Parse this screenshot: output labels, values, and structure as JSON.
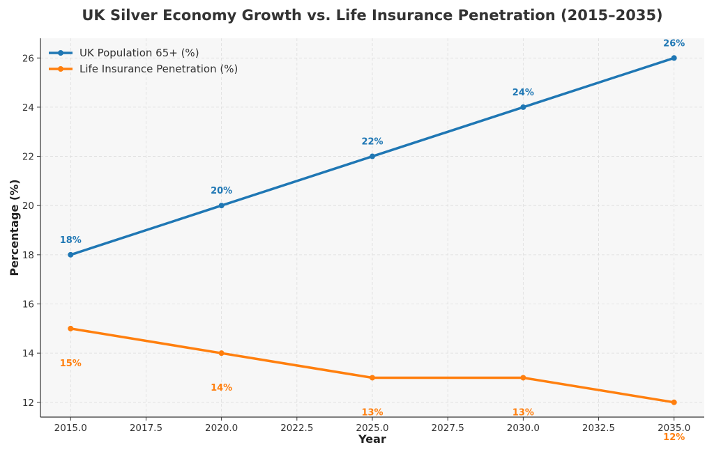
{
  "chart_data": {
    "type": "line",
    "title": "UK Silver Economy Growth vs. Life Insurance Penetration (2015–2035)",
    "xlabel": "Year",
    "ylabel": "Percentage (%)",
    "xlim": [
      2014.0,
      2036.0
    ],
    "ylim": [
      11.4,
      26.8
    ],
    "xticks": [
      2015.0,
      2017.5,
      2020.0,
      2022.5,
      2025.0,
      2027.5,
      2030.0,
      2032.5,
      2035.0
    ],
    "xtick_labels": [
      "2015.0",
      "2017.5",
      "2020.0",
      "2022.5",
      "2025.0",
      "2027.5",
      "2030.0",
      "2032.5",
      "2035.0"
    ],
    "yticks": [
      12,
      14,
      16,
      18,
      20,
      22,
      24,
      26
    ],
    "ytick_labels": [
      "12",
      "14",
      "16",
      "18",
      "20",
      "22",
      "24",
      "26"
    ],
    "grid": true,
    "legend_position": "top-left",
    "x": [
      2015,
      2020,
      2025,
      2030,
      2035
    ],
    "series": [
      {
        "name": "UK Population 65+ (%)",
        "color": "#1f77b4",
        "values": [
          18,
          20,
          22,
          24,
          26
        ],
        "labels": [
          "18%",
          "20%",
          "22%",
          "24%",
          "26%"
        ],
        "label_position": "above"
      },
      {
        "name": "Life Insurance Penetration (%)",
        "color": "#ff7f0e",
        "values": [
          15,
          14,
          13,
          13,
          12
        ],
        "labels": [
          "15%",
          "14%",
          "13%",
          "13%",
          "12%"
        ],
        "label_position": "below"
      }
    ]
  }
}
